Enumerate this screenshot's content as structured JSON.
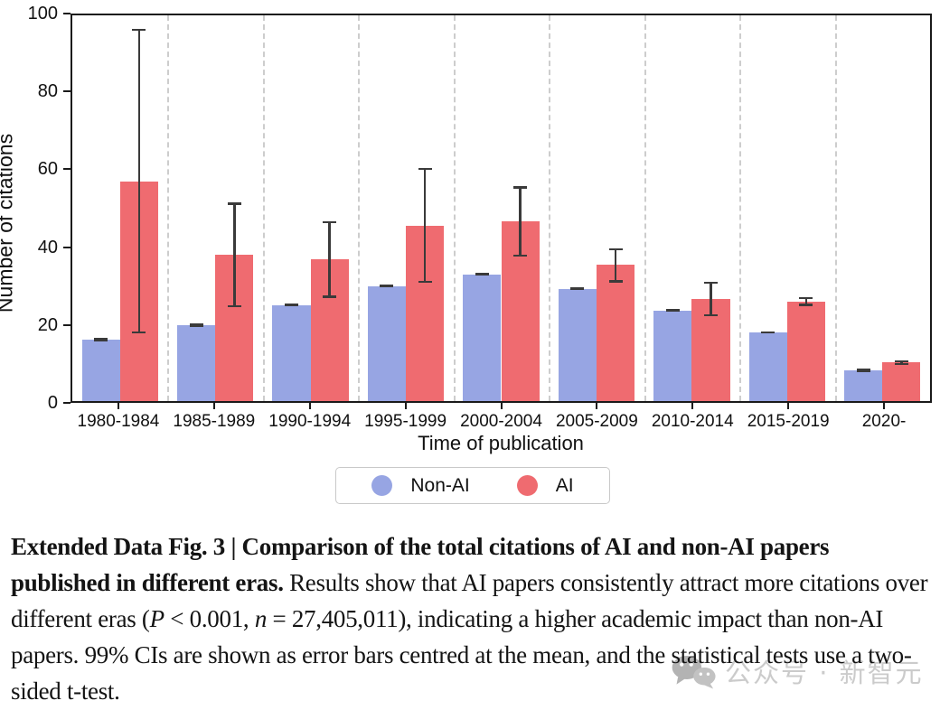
{
  "chart_data": {
    "type": "bar",
    "title": "",
    "xlabel": "Time of publication",
    "ylabel": "Number of citations",
    "ylim": [
      0,
      100
    ],
    "y_ticks": [
      0,
      20,
      40,
      60,
      80,
      100
    ],
    "grid": "vertical dashed separators between category groups",
    "legend_position": "below-center",
    "error_bars": "99% CI centred at the mean",
    "categories": [
      "1980-1984",
      "1985-1989",
      "1990-1994",
      "1995-1999",
      "2000-2004",
      "2005-2009",
      "2010-2014",
      "2015-2019",
      "2020-"
    ],
    "series": [
      {
        "name": "Non-AI",
        "color": "#97a5e3",
        "values": [
          16.0,
          19.7,
          24.9,
          29.8,
          32.9,
          29.1,
          23.5,
          17.8,
          8.0
        ],
        "ci_low": [
          15.5,
          19.3,
          24.6,
          29.4,
          32.6,
          28.9,
          23.2,
          17.5,
          7.8
        ],
        "ci_high": [
          16.5,
          20.1,
          25.2,
          30.2,
          33.2,
          29.3,
          23.8,
          18.1,
          8.2
        ]
      },
      {
        "name": "AI",
        "color": "#ef6b70",
        "values": [
          57.0,
          38.0,
          36.7,
          45.5,
          46.6,
          35.3,
          26.5,
          25.8,
          10.0
        ],
        "ci_low": [
          17.5,
          24.3,
          26.8,
          30.6,
          37.4,
          30.7,
          22.0,
          24.6,
          9.3
        ],
        "ci_high": [
          96.5,
          51.5,
          46.7,
          60.5,
          55.7,
          39.7,
          31.0,
          27.0,
          10.6
        ]
      }
    ]
  },
  "style": {
    "errorbar_color": "#3a3a3a",
    "gridline_color": "#cdcdcd",
    "axis_color": "#1a1a1a"
  },
  "caption": {
    "segments": [
      {
        "style": "bold",
        "text": "Extended Data Fig. 3 | Comparison of the total citations of AI and non-AI papers published in different eras. "
      },
      {
        "style": "regular",
        "text": "Results show that AI papers consistently attract more citations over different eras ("
      },
      {
        "style": "italic",
        "text": "P"
      },
      {
        "style": "regular",
        "text": " < 0.001, "
      },
      {
        "style": "italic",
        "text": "n"
      },
      {
        "style": "regular",
        "text": " = 27,405,011), indicating a higher academic impact than non-AI papers. 99% CIs are shown as error bars centred at the mean, and the statistical tests use a two-sided t-test."
      }
    ]
  },
  "watermark": {
    "text": "公众号 · 新智元",
    "icon": "wechat-chat-bubbles-icon"
  }
}
